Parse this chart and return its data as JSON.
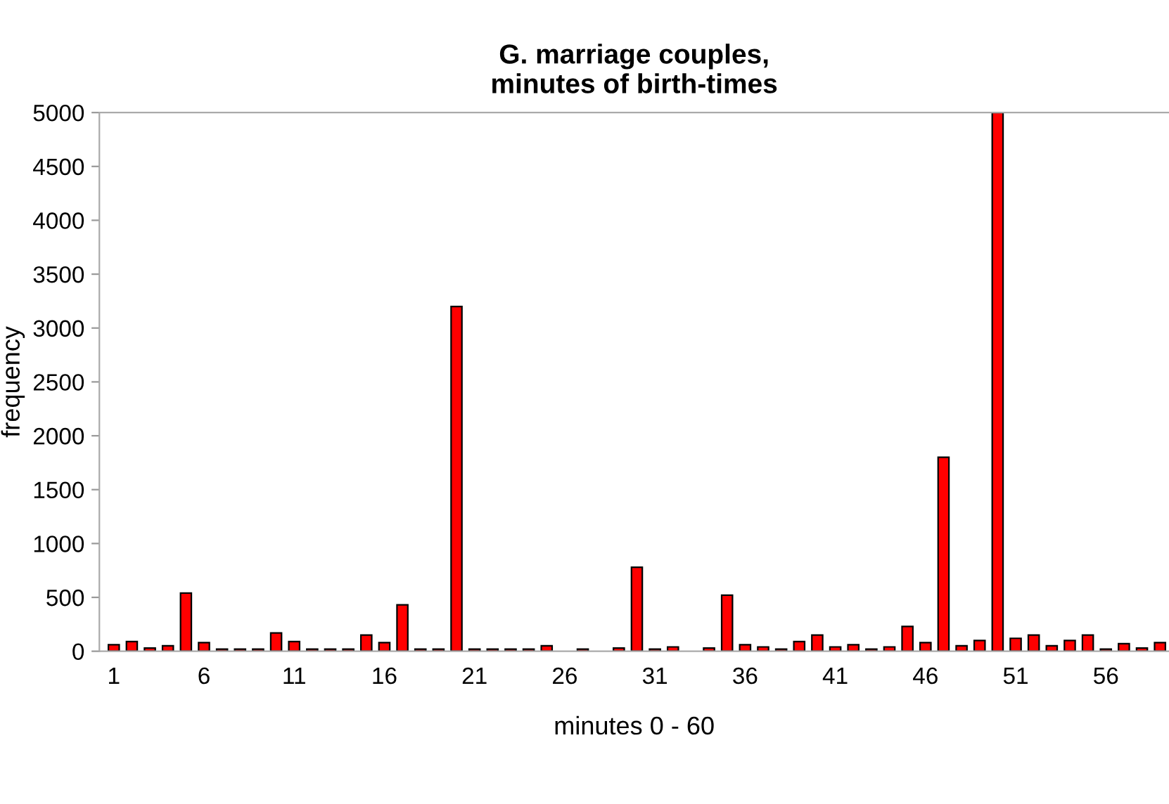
{
  "chart_data": {
    "type": "bar",
    "title": "G. marriage couples,\nminutes of birth-times",
    "xlabel": "minutes 0 - 60",
    "ylabel": "frequency",
    "categories": [
      "1",
      null,
      null,
      null,
      null,
      "6",
      null,
      null,
      null,
      null,
      "11",
      null,
      null,
      null,
      null,
      "16",
      null,
      null,
      null,
      null,
      "21",
      null,
      null,
      null,
      null,
      "26",
      null,
      null,
      null,
      null,
      "31",
      null,
      null,
      null,
      null,
      "36",
      null,
      null,
      null,
      null,
      "41",
      null,
      null,
      null,
      null,
      "46",
      null,
      null,
      null,
      null,
      "51",
      null,
      null,
      null,
      null,
      "56",
      null,
      null,
      null
    ],
    "values": [
      60,
      90,
      30,
      50,
      540,
      80,
      20,
      20,
      20,
      170,
      90,
      20,
      20,
      20,
      150,
      80,
      430,
      20,
      20,
      3200,
      20,
      20,
      20,
      20,
      50,
      null,
      20,
      null,
      30,
      780,
      20,
      40,
      null,
      30,
      520,
      60,
      40,
      20,
      90,
      150,
      40,
      60,
      20,
      40,
      230,
      80,
      1800,
      50,
      100,
      5000,
      120,
      150,
      50,
      100,
      150,
      20,
      70,
      30,
      80
    ],
    "color": "#ff0000",
    "ylim": [
      0,
      5000
    ],
    "yticks": [
      0,
      500,
      1000,
      1500,
      2000,
      2500,
      3000,
      3500,
      4000,
      4500,
      5000
    ],
    "grid": false
  }
}
